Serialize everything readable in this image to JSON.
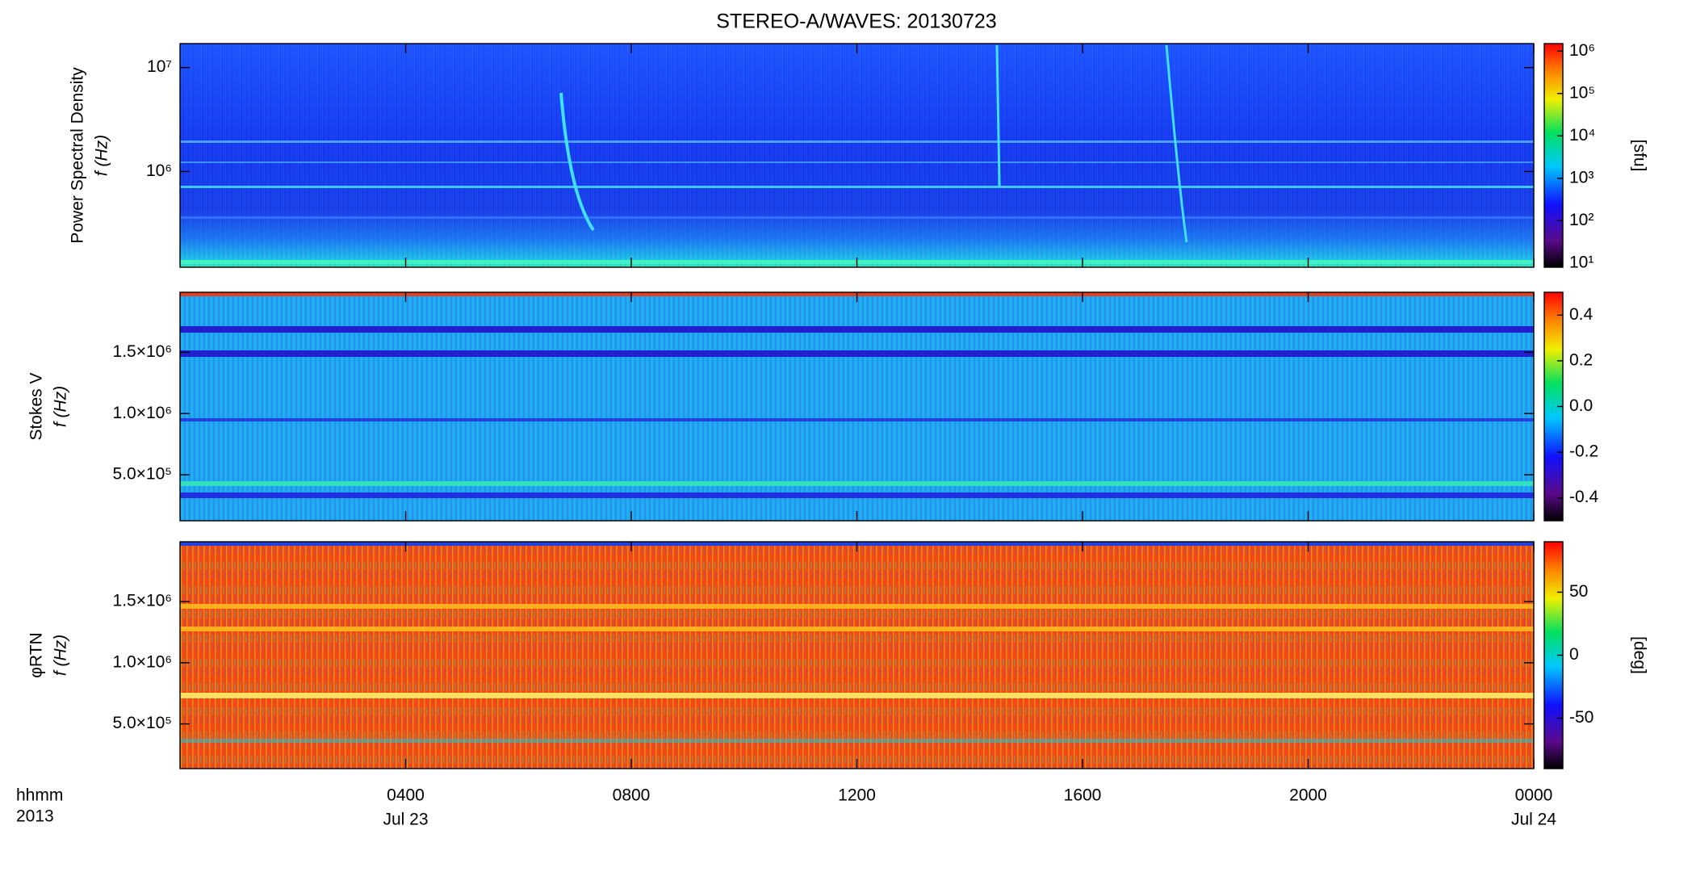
{
  "chart_data": [
    {
      "type": "spectrogram",
      "title": "STEREO-A/WAVES: 20130723",
      "ylabel": "Power Spectral Density",
      "ylabel_units": "f (Hz)",
      "ylog": true,
      "ylim": [
        120000,
        17000000
      ],
      "yticks": [
        {
          "value": 1000000,
          "label": "10⁶"
        },
        {
          "value": 10000000,
          "label": "10⁷"
        }
      ],
      "clog": true,
      "clim": [
        8,
        1500000
      ],
      "cticks": [
        {
          "value": 10,
          "label": "10¹"
        },
        {
          "value": 100,
          "label": "10²"
        },
        {
          "value": 1000,
          "label": "10³"
        },
        {
          "value": 10000,
          "label": "10⁴"
        },
        {
          "value": 100000,
          "label": "10⁵"
        },
        {
          "value": 1000000,
          "label": "10⁶"
        }
      ],
      "clabel": "[sfu]",
      "xlim": [
        "2013-07-23 00:00",
        "2013-07-24 00:00"
      ],
      "xticks": [
        "2013-07-23 04:00",
        "2013-07-23 08:00",
        "2013-07-23 12:00",
        "2013-07-23 16:00",
        "2013-07-23 20:00",
        "2013-07-24 00:00"
      ]
    },
    {
      "type": "spectrogram",
      "ylabel": "Stokes V",
      "ylabel_units": "f (Hz)",
      "ylog": false,
      "ylim": [
        125000,
        1990000
      ],
      "yticks": [
        {
          "value": 500000,
          "label": "5.0×10⁵"
        },
        {
          "value": 1000000,
          "label": "1.0×10⁶"
        },
        {
          "value": 1500000,
          "label": "1.5×10⁶"
        }
      ],
      "clog": false,
      "clim": [
        -0.5,
        0.5
      ],
      "cticks": [
        -0.4,
        -0.2,
        {
          "value": 0,
          "label": "0.0"
        },
        0.2,
        0.4
      ],
      "xlim": [
        "2013-07-23 00:00",
        "2013-07-24 00:00"
      ],
      "xticks": [
        "2013-07-23 04:00",
        "2013-07-23 08:00",
        "2013-07-23 12:00",
        "2013-07-23 16:00",
        "2013-07-23 20:00",
        "2013-07-24 00:00"
      ]
    },
    {
      "type": "spectrogram",
      "ylabel": "φRTN",
      "ylabel_units": "f (Hz)",
      "ylog": false,
      "ylim": [
        134000,
        1990000
      ],
      "yticks": [
        {
          "value": 500000,
          "label": "5.0×10⁵"
        },
        {
          "value": 1000000,
          "label": "1.0×10⁶"
        },
        {
          "value": 1500000,
          "label": "1.5×10⁶"
        }
      ],
      "clog": false,
      "clim": [
        -90,
        90
      ],
      "cticks": [
        -50,
        0,
        50
      ],
      "clabel": "[deg]",
      "xlim": [
        "2013-07-23 00:00",
        "2013-07-24 00:00"
      ],
      "xticks": [
        {
          "value": "2013-07-23 04:00",
          "label": "0400"
        },
        {
          "value": "2013-07-23 08:00",
          "label": "0800"
        },
        {
          "value": "2013-07-23 12:00",
          "label": "1200"
        },
        {
          "value": "2013-07-23 16:00",
          "label": "1600"
        },
        {
          "value": "2013-07-23 20:00",
          "label": "2000"
        },
        {
          "value": "2013-07-24 00:00",
          "label": "0000"
        }
      ],
      "xdate_labels": [
        {
          "value": "2013-07-23 04:00",
          "label": "Jul 23"
        },
        {
          "value": "2013-07-24 00:00",
          "label": "Jul 24"
        }
      ],
      "xaxis_format": "hhmm",
      "xaxis_year": "2013"
    }
  ]
}
